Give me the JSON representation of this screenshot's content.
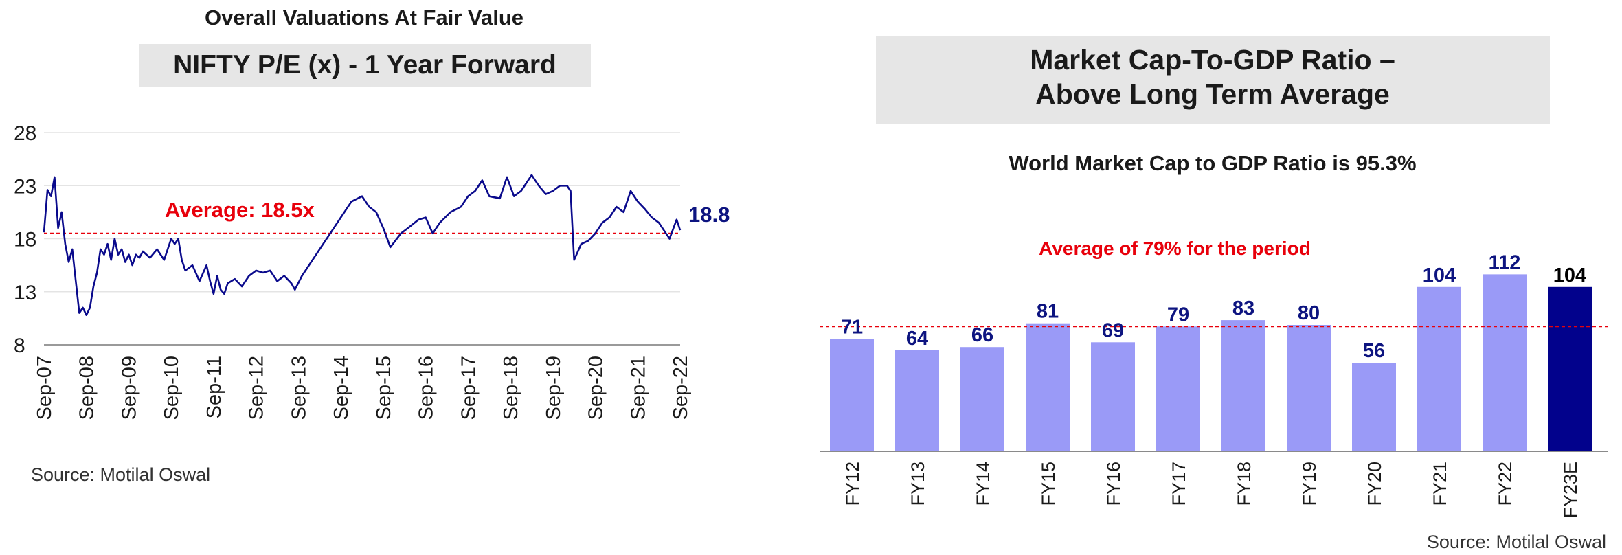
{
  "left_panel": {
    "heading": "Overall Valuations At Fair Value",
    "title": "NIFTY P/E (x) - 1 Year Forward",
    "source": "Source: Motilal Oswal"
  },
  "right_panel": {
    "title_line1": "Market Cap-To-GDP Ratio –",
    "title_line2": "Above Long Term Average",
    "subtitle": "World Market Cap to GDP Ratio is 95.3%",
    "source": "Source: Motilal Oswal"
  },
  "colors": {
    "line": "#0a0a8c",
    "average_line": "#e8000b",
    "bar": "#9a9af7",
    "bar_highlight": "#02028c",
    "title_box": "#e6e6e6",
    "data_label": "#0d1480",
    "text": "#1a1a1a"
  },
  "chart_data": [
    {
      "type": "line",
      "ylim": [
        8,
        28
      ],
      "yticks": [
        8,
        13,
        18,
        23,
        28
      ],
      "xlim": [
        "2007-09",
        "2022-09"
      ],
      "x_tick_labels": [
        "Sep-07",
        "Sep-08",
        "Sep-09",
        "Sep-10",
        "Sep-11",
        "Sep-12",
        "Sep-13",
        "Sep-14",
        "Sep-15",
        "Sep-16",
        "Sep-17",
        "Sep-18",
        "Sep-19",
        "Sep-20",
        "Sep-21",
        "Sep-22"
      ],
      "grid": true,
      "average": {
        "value": 18.5,
        "label": "Average: 18.5x"
      },
      "end_label": "18.8",
      "series": [
        {
          "x": [
            "2007-09",
            "2007-10",
            "2007-11",
            "2007-12",
            "2008-01",
            "2008-02",
            "2008-03",
            "2008-04",
            "2008-05",
            "2008-06",
            "2008-07",
            "2008-08",
            "2008-09",
            "2008-10",
            "2008-11",
            "2008-12",
            "2009-01",
            "2009-02",
            "2009-03",
            "2009-04",
            "2009-05",
            "2009-06",
            "2009-07",
            "2009-08",
            "2009-09",
            "2009-10",
            "2009-11",
            "2009-12",
            "2010-01",
            "2010-03",
            "2010-05",
            "2010-07",
            "2010-09",
            "2010-10",
            "2010-11",
            "2010-12",
            "2011-01",
            "2011-03",
            "2011-05",
            "2011-07",
            "2011-08",
            "2011-09",
            "2011-10",
            "2011-11",
            "2011-12",
            "2012-01",
            "2012-03",
            "2012-05",
            "2012-07",
            "2012-09",
            "2012-11",
            "2013-01",
            "2013-03",
            "2013-05",
            "2013-07",
            "2013-08",
            "2013-10",
            "2013-12",
            "2014-02",
            "2014-04",
            "2014-06",
            "2014-09",
            "2014-12",
            "2015-03",
            "2015-05",
            "2015-07",
            "2015-09",
            "2015-11",
            "2016-02",
            "2016-04",
            "2016-07",
            "2016-09",
            "2016-11",
            "2017-01",
            "2017-04",
            "2017-07",
            "2017-09",
            "2017-11",
            "2018-01",
            "2018-03",
            "2018-06",
            "2018-08",
            "2018-10",
            "2018-12",
            "2019-03",
            "2019-05",
            "2019-07",
            "2019-09",
            "2019-11",
            "2020-01",
            "2020-02",
            "2020-03",
            "2020-05",
            "2020-07",
            "2020-09",
            "2020-11",
            "2021-01",
            "2021-03",
            "2021-05",
            "2021-07",
            "2021-09",
            "2021-11",
            "2022-01",
            "2022-03",
            "2022-05",
            "2022-06",
            "2022-08",
            "2022-09"
          ],
          "values": [
            18.6,
            22.6,
            22.0,
            23.8,
            19.0,
            20.5,
            17.5,
            15.8,
            17.0,
            14.0,
            11.0,
            11.5,
            10.8,
            11.5,
            13.5,
            14.8,
            17.0,
            16.5,
            17.5,
            16.0,
            18.0,
            16.5,
            17.0,
            15.8,
            16.5,
            15.5,
            16.5,
            16.2,
            16.8,
            16.2,
            17.0,
            16.0,
            18.0,
            17.5,
            18.0,
            16.0,
            15.0,
            15.5,
            14.0,
            15.5,
            14.0,
            12.8,
            14.5,
            13.2,
            12.8,
            13.8,
            14.2,
            13.5,
            14.5,
            15.0,
            14.8,
            15.0,
            14.0,
            14.5,
            13.8,
            13.2,
            14.5,
            15.5,
            16.5,
            17.5,
            18.5,
            20.0,
            21.5,
            22.0,
            21.0,
            20.5,
            19.0,
            17.2,
            18.5,
            19.0,
            19.8,
            20.0,
            18.5,
            19.5,
            20.5,
            21.0,
            22.0,
            22.5,
            23.5,
            22.0,
            21.8,
            23.8,
            22.0,
            22.5,
            24.0,
            23.0,
            22.2,
            22.5,
            23.0,
            23.0,
            22.5,
            16.0,
            17.5,
            17.8,
            18.5,
            19.5,
            20.0,
            21.0,
            20.5,
            22.5,
            21.5,
            20.8,
            20.0,
            19.5,
            18.5,
            18.0,
            19.8,
            18.8
          ]
        }
      ]
    },
    {
      "type": "bar",
      "categories": [
        "FY12",
        "FY13",
        "FY14",
        "FY15",
        "FY16",
        "FY17",
        "FY18",
        "FY19",
        "FY20",
        "FY21",
        "FY22",
        "FY23E"
      ],
      "values": [
        71,
        64,
        66,
        81,
        69,
        79,
        83,
        80,
        56,
        104,
        112,
        104
      ],
      "highlight": "FY23E",
      "ylim": [
        0,
        120
      ],
      "grid": false,
      "average": {
        "value": 79,
        "label": "Average of 79% for the period"
      }
    }
  ]
}
